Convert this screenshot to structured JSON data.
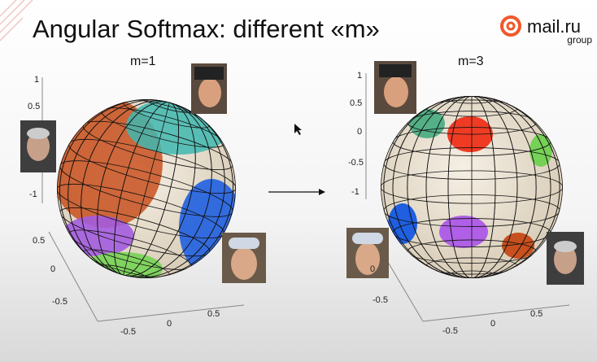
{
  "header": {
    "title": "Angular Softmax: different «m»"
  },
  "logo": {
    "name": "mail.ru",
    "sub": "group"
  },
  "panels": [
    {
      "label": "m=1",
      "z_ticks": [
        "1",
        "0.5",
        "-1"
      ],
      "y_ticks": [
        "0.5",
        "0",
        "-0.5"
      ],
      "x_ticks": [
        "-0.5",
        "0",
        "0.5"
      ]
    },
    {
      "label": "m=3",
      "z_ticks": [
        "1",
        "0.5",
        "0",
        "-0.5",
        "-1"
      ],
      "y_ticks": [
        "0",
        "-0.5"
      ],
      "x_ticks": [
        "-0.5",
        "0",
        "0.5"
      ]
    }
  ]
}
